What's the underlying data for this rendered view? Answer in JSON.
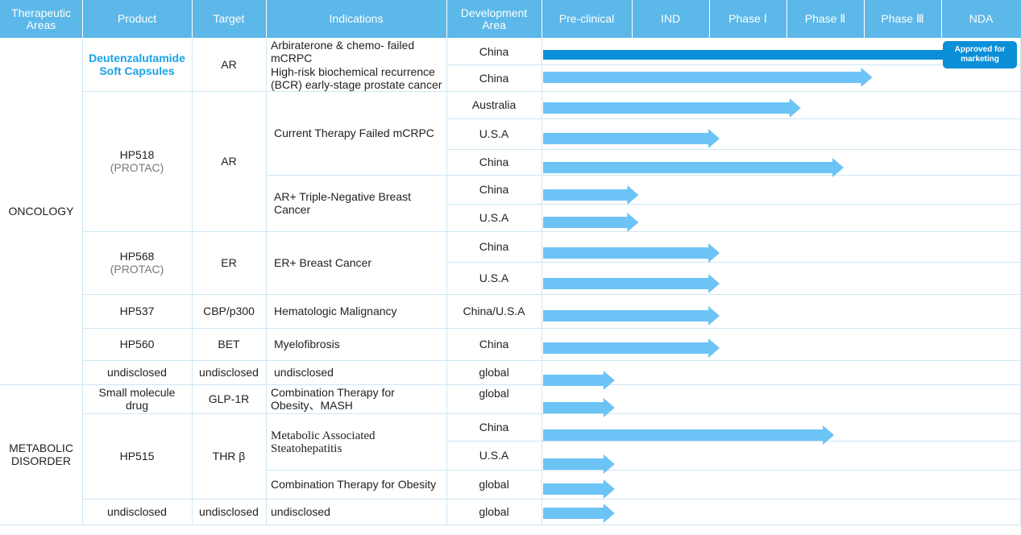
{
  "headers": [
    "Therapeutic Areas",
    "Product",
    "Target",
    "Indications",
    "Development Area",
    "Pre-clinical",
    "IND",
    "Phase Ⅰ",
    "Phase Ⅱ",
    "Phase Ⅲ",
    "NDA"
  ],
  "colors": {
    "header_bg": "#5cb8e8",
    "grid": "#cfe6f3",
    "arrow": "#6cc3f5",
    "approved_bar": "#0a8fd8",
    "product_highlight": "#1aa3e6"
  },
  "areas": [
    "ONCOLOGY",
    "METABOLIC DISORDER"
  ],
  "products": [
    {
      "name": "Deutenzalutamide Soft Capsules",
      "sub": ""
    },
    {
      "name": "HP518",
      "sub": "(PROTAC)"
    },
    {
      "name": "HP568",
      "sub": "(PROTAC)"
    },
    {
      "name": "HP537",
      "sub": ""
    },
    {
      "name": "HP560",
      "sub": ""
    },
    {
      "name": "undisclosed",
      "sub": ""
    },
    {
      "name": "Small molecule drug",
      "sub": ""
    },
    {
      "name": "HP515",
      "sub": ""
    },
    {
      "name": "undisclosed",
      "sub": ""
    }
  ],
  "targets": [
    "AR",
    "AR",
    "ER",
    "CBP/p300",
    "BET",
    "undisclosed",
    "GLP-1R",
    "THR β",
    "undisclosed"
  ],
  "indications": [
    "Arbiraterone & chemo- failed mCRPC",
    "High-risk biochemical recurrence (BCR) early-stage prostate cancer",
    "Current Therapy Failed mCRPC",
    "AR+ Triple-Negative Breast Cancer",
    "ER+ Breast Cancer",
    "Hematologic Malignancy",
    "Myelofibrosis",
    "undisclosed",
    "Combination Therapy for Obesity、MASH",
    "Metabolic Associated Steatohepatitis",
    "Combination Therapy for Obesity",
    "undisclosed"
  ],
  "programs": [
    {
      "area": "China",
      "stage": "NDA",
      "progress": 1.0,
      "approved": true,
      "label": "Approved for marketing"
    },
    {
      "area": "China",
      "stage": "Phase Ⅱ",
      "progress": 0.69
    },
    {
      "area": "Australia",
      "stage": "Phase Ⅰ",
      "progress": 0.54
    },
    {
      "area": "U.S.A",
      "stage": "IND",
      "progress": 0.37
    },
    {
      "area": "China",
      "stage": "Phase Ⅱ",
      "progress": 0.63
    },
    {
      "area": "China",
      "stage": "Pre-clinical",
      "progress": 0.2
    },
    {
      "area": "U.S.A",
      "stage": "Pre-clinical",
      "progress": 0.2
    },
    {
      "area": "China",
      "stage": "IND",
      "progress": 0.37
    },
    {
      "area": "U.S.A",
      "stage": "IND",
      "progress": 0.37
    },
    {
      "area": "China/U.S.A",
      "stage": "IND",
      "progress": 0.37
    },
    {
      "area": "China",
      "stage": "IND",
      "progress": 0.37
    },
    {
      "area": "global",
      "stage": "Pre-clinical",
      "progress": 0.15
    },
    {
      "area": "global",
      "stage": "Pre-clinical",
      "progress": 0.15
    },
    {
      "area": "China",
      "stage": "Phase Ⅱ",
      "progress": 0.61
    },
    {
      "area": "U.S.A",
      "stage": "Pre-clinical",
      "progress": 0.15
    },
    {
      "area": "global",
      "stage": "Pre-clinical",
      "progress": 0.15
    },
    {
      "area": "global",
      "stage": "Pre-clinical",
      "progress": 0.15
    }
  ]
}
